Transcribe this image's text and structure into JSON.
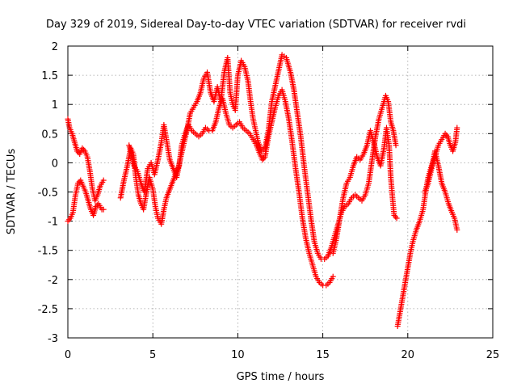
{
  "chart_data": {
    "type": "scatter",
    "title": "Day 329 of 2019, Sidereal Day-to-day VTEC variation (SDTVAR) for receiver rvdi",
    "xlabel": "GPS time / hours",
    "ylabel": "SDTVAR / TECUs",
    "xlim": [
      0,
      25
    ],
    "ylim": [
      -3,
      2
    ],
    "xticks": [
      0,
      5,
      10,
      15,
      20,
      25
    ],
    "yticks": [
      2,
      1.5,
      1,
      0.5,
      0,
      -0.5,
      -1,
      -1.5,
      -2,
      -2.5,
      -3
    ],
    "grid": true,
    "marker": "plus",
    "color": "#ff0000",
    "series": [
      {
        "points": [
          [
            0.0,
            0.75
          ],
          [
            0.1,
            0.6
          ],
          [
            0.25,
            0.5
          ],
          [
            0.4,
            0.35
          ],
          [
            0.55,
            0.2
          ],
          [
            0.7,
            0.15
          ],
          [
            0.85,
            0.25
          ],
          [
            1.0,
            0.2
          ],
          [
            1.15,
            0.1
          ],
          [
            1.3,
            -0.15
          ],
          [
            1.45,
            -0.45
          ],
          [
            1.6,
            -0.65
          ],
          [
            1.75,
            -0.55
          ],
          [
            1.9,
            -0.4
          ],
          [
            2.1,
            -0.3
          ]
        ]
      },
      {
        "points": [
          [
            0.0,
            -1.0
          ],
          [
            0.15,
            -0.95
          ],
          [
            0.3,
            -0.85
          ],
          [
            0.45,
            -0.55
          ],
          [
            0.6,
            -0.35
          ],
          [
            0.75,
            -0.3
          ],
          [
            0.9,
            -0.4
          ],
          [
            1.05,
            -0.5
          ],
          [
            1.2,
            -0.65
          ],
          [
            1.35,
            -0.8
          ],
          [
            1.5,
            -0.9
          ],
          [
            1.65,
            -0.75
          ],
          [
            1.8,
            -0.7
          ],
          [
            2.0,
            -0.8
          ],
          [
            2.1,
            -0.8
          ]
        ]
      },
      {
        "points": [
          [
            3.1,
            -0.6
          ],
          [
            3.3,
            -0.3
          ],
          [
            3.5,
            -0.05
          ],
          [
            3.7,
            0.25
          ],
          [
            3.85,
            0.15
          ],
          [
            4.0,
            -0.25
          ],
          [
            4.15,
            -0.55
          ],
          [
            4.3,
            -0.7
          ],
          [
            4.45,
            -0.8
          ],
          [
            4.6,
            -0.55
          ],
          [
            4.8,
            -0.25
          ],
          [
            5.0,
            -0.45
          ],
          [
            5.15,
            -0.75
          ],
          [
            5.3,
            -0.95
          ],
          [
            5.5,
            -1.05
          ],
          [
            5.65,
            -0.8
          ],
          [
            5.8,
            -0.6
          ],
          [
            6.0,
            -0.45
          ],
          [
            6.2,
            -0.3
          ],
          [
            6.4,
            -0.15
          ],
          [
            6.55,
            -0.05
          ],
          [
            6.7,
            0.3
          ],
          [
            6.9,
            0.5
          ],
          [
            7.1,
            0.65
          ],
          [
            7.3,
            0.55
          ],
          [
            7.5,
            0.5
          ],
          [
            7.7,
            0.45
          ],
          [
            7.9,
            0.5
          ],
          [
            8.1,
            0.6
          ],
          [
            8.3,
            0.55
          ],
          [
            8.5,
            0.55
          ],
          [
            8.7,
            0.7
          ],
          [
            8.9,
            0.95
          ],
          [
            9.1,
            1.1
          ],
          [
            9.3,
            0.85
          ],
          [
            9.5,
            0.65
          ],
          [
            9.7,
            0.6
          ],
          [
            9.9,
            0.65
          ],
          [
            10.1,
            0.7
          ],
          [
            10.3,
            0.6
          ],
          [
            10.5,
            0.55
          ],
          [
            10.7,
            0.5
          ],
          [
            10.9,
            0.4
          ],
          [
            11.1,
            0.3
          ],
          [
            11.3,
            0.15
          ],
          [
            11.45,
            0.05
          ],
          [
            11.6,
            0.1
          ],
          [
            11.8,
            0.45
          ],
          [
            12.0,
            0.7
          ],
          [
            12.2,
            0.95
          ],
          [
            12.4,
            1.15
          ],
          [
            12.6,
            1.25
          ],
          [
            12.8,
            1.05
          ],
          [
            13.0,
            0.75
          ],
          [
            13.2,
            0.35
          ],
          [
            13.4,
            -0.1
          ],
          [
            13.6,
            -0.5
          ],
          [
            13.8,
            -0.95
          ],
          [
            14.0,
            -1.3
          ],
          [
            14.2,
            -1.55
          ],
          [
            14.4,
            -1.75
          ],
          [
            14.6,
            -1.95
          ],
          [
            14.8,
            -2.05
          ],
          [
            15.0,
            -2.1
          ],
          [
            15.2,
            -2.1
          ],
          [
            15.4,
            -2.05
          ],
          [
            15.6,
            -1.95
          ]
        ]
      },
      {
        "points": [
          [
            3.6,
            0.3
          ],
          [
            3.75,
            0.15
          ],
          [
            3.9,
            -0.05
          ],
          [
            4.1,
            -0.15
          ],
          [
            4.3,
            -0.35
          ],
          [
            4.5,
            -0.5
          ],
          [
            4.7,
            -0.1
          ],
          [
            4.9,
            0.0
          ],
          [
            5.1,
            -0.2
          ],
          [
            5.3,
            0.05
          ],
          [
            5.5,
            0.35
          ],
          [
            5.65,
            0.65
          ],
          [
            5.8,
            0.4
          ],
          [
            6.0,
            0.05
          ],
          [
            6.2,
            -0.1
          ],
          [
            6.4,
            -0.25
          ],
          [
            6.6,
            0.05
          ],
          [
            6.8,
            0.3
          ],
          [
            7.0,
            0.55
          ],
          [
            7.2,
            0.85
          ],
          [
            7.4,
            0.95
          ],
          [
            7.6,
            1.05
          ],
          [
            7.8,
            1.2
          ],
          [
            8.0,
            1.45
          ],
          [
            8.2,
            1.55
          ],
          [
            8.4,
            1.2
          ],
          [
            8.6,
            1.05
          ],
          [
            8.8,
            1.3
          ],
          [
            9.0,
            1.05
          ],
          [
            9.2,
            1.55
          ],
          [
            9.4,
            1.8
          ],
          [
            9.55,
            1.2
          ],
          [
            9.7,
            1.0
          ],
          [
            9.85,
            0.9
          ],
          [
            10.0,
            1.5
          ],
          [
            10.2,
            1.75
          ],
          [
            10.4,
            1.65
          ],
          [
            10.6,
            1.4
          ],
          [
            10.75,
            1.05
          ],
          [
            10.9,
            0.75
          ],
          [
            11.05,
            0.55
          ],
          [
            11.2,
            0.35
          ],
          [
            11.4,
            0.2
          ],
          [
            11.6,
            0.25
          ],
          [
            11.8,
            0.55
          ],
          [
            12.0,
            1.05
          ],
          [
            12.3,
            1.45
          ],
          [
            12.6,
            1.85
          ],
          [
            12.85,
            1.8
          ],
          [
            13.1,
            1.55
          ],
          [
            13.3,
            1.25
          ],
          [
            13.5,
            0.85
          ],
          [
            13.7,
            0.45
          ],
          [
            13.9,
            -0.05
          ],
          [
            14.1,
            -0.5
          ],
          [
            14.3,
            -0.95
          ],
          [
            14.5,
            -1.35
          ],
          [
            14.7,
            -1.55
          ],
          [
            14.9,
            -1.65
          ],
          [
            15.1,
            -1.65
          ],
          [
            15.3,
            -1.6
          ],
          [
            15.5,
            -1.45
          ],
          [
            15.7,
            -1.25
          ],
          [
            15.9,
            -1.05
          ],
          [
            16.1,
            -0.85
          ],
          [
            16.3,
            -0.75
          ],
          [
            16.5,
            -0.7
          ],
          [
            16.7,
            -0.6
          ],
          [
            16.9,
            -0.55
          ],
          [
            17.1,
            -0.6
          ],
          [
            17.3,
            -0.65
          ],
          [
            17.5,
            -0.55
          ],
          [
            17.7,
            -0.35
          ],
          [
            17.9,
            0.05
          ],
          [
            18.1,
            0.45
          ],
          [
            18.3,
            0.75
          ],
          [
            18.5,
            0.95
          ],
          [
            18.7,
            1.15
          ],
          [
            18.85,
            1.05
          ],
          [
            19.0,
            0.7
          ],
          [
            19.15,
            0.55
          ],
          [
            19.3,
            0.3
          ]
        ]
      },
      {
        "points": [
          [
            15.6,
            -1.55
          ],
          [
            15.8,
            -1.3
          ],
          [
            16.0,
            -0.95
          ],
          [
            16.2,
            -0.6
          ],
          [
            16.4,
            -0.35
          ],
          [
            16.6,
            -0.25
          ],
          [
            16.8,
            -0.05
          ],
          [
            17.0,
            0.1
          ],
          [
            17.2,
            0.05
          ],
          [
            17.4,
            0.15
          ],
          [
            17.6,
            0.3
          ],
          [
            17.8,
            0.55
          ],
          [
            18.0,
            0.35
          ],
          [
            18.2,
            0.1
          ],
          [
            18.4,
            -0.05
          ],
          [
            18.6,
            0.25
          ],
          [
            18.75,
            0.6
          ],
          [
            18.9,
            0.3
          ],
          [
            19.0,
            -0.25
          ],
          [
            19.1,
            -0.6
          ],
          [
            19.2,
            -0.9
          ],
          [
            19.35,
            -0.95
          ]
        ]
      },
      {
        "points": [
          [
            19.4,
            -2.8
          ],
          [
            19.55,
            -2.55
          ],
          [
            19.7,
            -2.3
          ],
          [
            19.85,
            -2.05
          ],
          [
            20.0,
            -1.8
          ],
          [
            20.15,
            -1.55
          ],
          [
            20.3,
            -1.35
          ],
          [
            20.5,
            -1.15
          ],
          [
            20.7,
            -1.0
          ],
          [
            20.9,
            -0.8
          ],
          [
            21.05,
            -0.5
          ],
          [
            21.2,
            -0.25
          ],
          [
            21.4,
            -0.05
          ],
          [
            21.6,
            0.1
          ],
          [
            21.8,
            0.3
          ],
          [
            22.0,
            0.4
          ],
          [
            22.2,
            0.5
          ],
          [
            22.35,
            0.45
          ],
          [
            22.5,
            0.3
          ],
          [
            22.65,
            0.2
          ],
          [
            22.8,
            0.35
          ],
          [
            22.9,
            0.6
          ]
        ]
      },
      {
        "points": [
          [
            21.0,
            -0.5
          ],
          [
            21.2,
            -0.35
          ],
          [
            21.4,
            -0.1
          ],
          [
            21.6,
            0.2
          ],
          [
            21.8,
            -0.05
          ],
          [
            22.0,
            -0.35
          ],
          [
            22.2,
            -0.5
          ],
          [
            22.4,
            -0.7
          ],
          [
            22.6,
            -0.85
          ],
          [
            22.75,
            -0.95
          ],
          [
            22.9,
            -1.15
          ]
        ]
      }
    ]
  }
}
